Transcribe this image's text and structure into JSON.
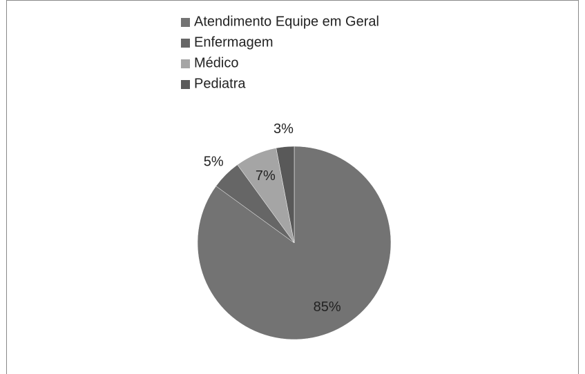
{
  "chart_data": {
    "type": "pie",
    "categories": [
      "Atendimento Equipe em Geral",
      "Enfermagem",
      "Médico",
      "Pediatra"
    ],
    "values": [
      85,
      5,
      7,
      3
    ],
    "value_labels": [
      "85%",
      "5%",
      "7%",
      "3%"
    ],
    "colors": [
      "#737373",
      "#666666",
      "#a5a5a5",
      "#595959"
    ],
    "legend": "top"
  }
}
